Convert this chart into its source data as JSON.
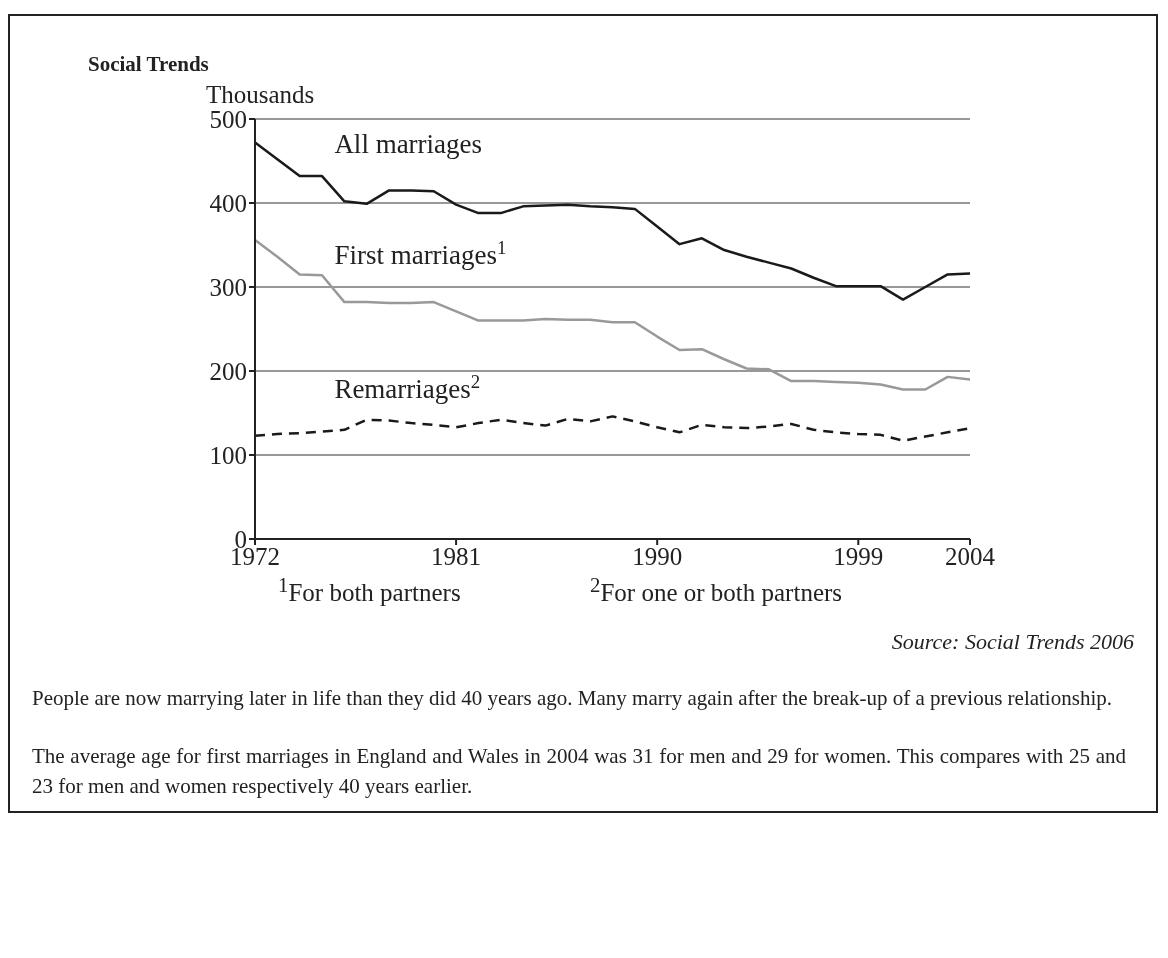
{
  "chart_data": {
    "type": "line",
    "title": "Social Trends",
    "ylabel": "Thousands",
    "x": [
      1972,
      1973,
      1974,
      1975,
      1976,
      1977,
      1978,
      1979,
      1980,
      1981,
      1982,
      1983,
      1984,
      1985,
      1986,
      1987,
      1988,
      1989,
      1990,
      1991,
      1992,
      1993,
      1994,
      1995,
      1996,
      1997,
      1998,
      1999,
      2000,
      2001,
      2002,
      2003,
      2004
    ],
    "xlim": [
      1972,
      2004
    ],
    "xticks": [
      1972,
      1981,
      1990,
      1999,
      2004
    ],
    "ylim": [
      0,
      500
    ],
    "yticks": [
      0,
      100,
      200,
      300,
      400,
      500
    ],
    "grid": "y",
    "marker": "none",
    "series": [
      {
        "name": "All marriages",
        "color": "#1a1a1a",
        "line_style": "solid",
        "values": [
          472,
          452,
          432,
          432,
          402,
          399,
          415,
          415,
          414,
          398,
          388,
          388,
          396,
          397,
          398,
          396,
          395,
          393,
          372,
          351,
          358,
          344,
          336,
          329,
          322,
          311,
          301,
          301,
          301,
          285,
          300,
          315,
          316
        ]
      },
      {
        "name": "First marriages$^{1}$",
        "color": "#999999",
        "line_style": "solid",
        "values": [
          356,
          336,
          315,
          314,
          282,
          282,
          281,
          281,
          282,
          271,
          260,
          260,
          260,
          262,
          261,
          261,
          258,
          258,
          241,
          225,
          226,
          214,
          203,
          202,
          188,
          188,
          187,
          186,
          184,
          178,
          178,
          193,
          190
        ]
      },
      {
        "name": "Remarriages$^{2}$",
        "color": "#1a1a1a",
        "line_style": "dashed",
        "values": [
          123,
          125,
          126,
          128,
          130,
          142,
          141,
          138,
          136,
          133,
          138,
          142,
          138,
          135,
          143,
          140,
          146,
          140,
          133,
          127,
          136,
          133,
          132,
          134,
          137,
          130,
          127,
          125,
          124,
          117,
          122,
          127,
          132
        ]
      }
    ],
    "annotations": [
      "$^{1}$For both partners",
      "$^{2}$For one or both partners",
      "Source: Social Trends 2006",
      "People are now marrying later in life than they did 40 years ago. Many marry again after the break-up of a previous relationship.",
      "The average age for first marriages in England and Wales in 2004 was 31 for men and 29 for women. This compares with 25 and 23 for men and women respectively 40 years earlier."
    ]
  }
}
